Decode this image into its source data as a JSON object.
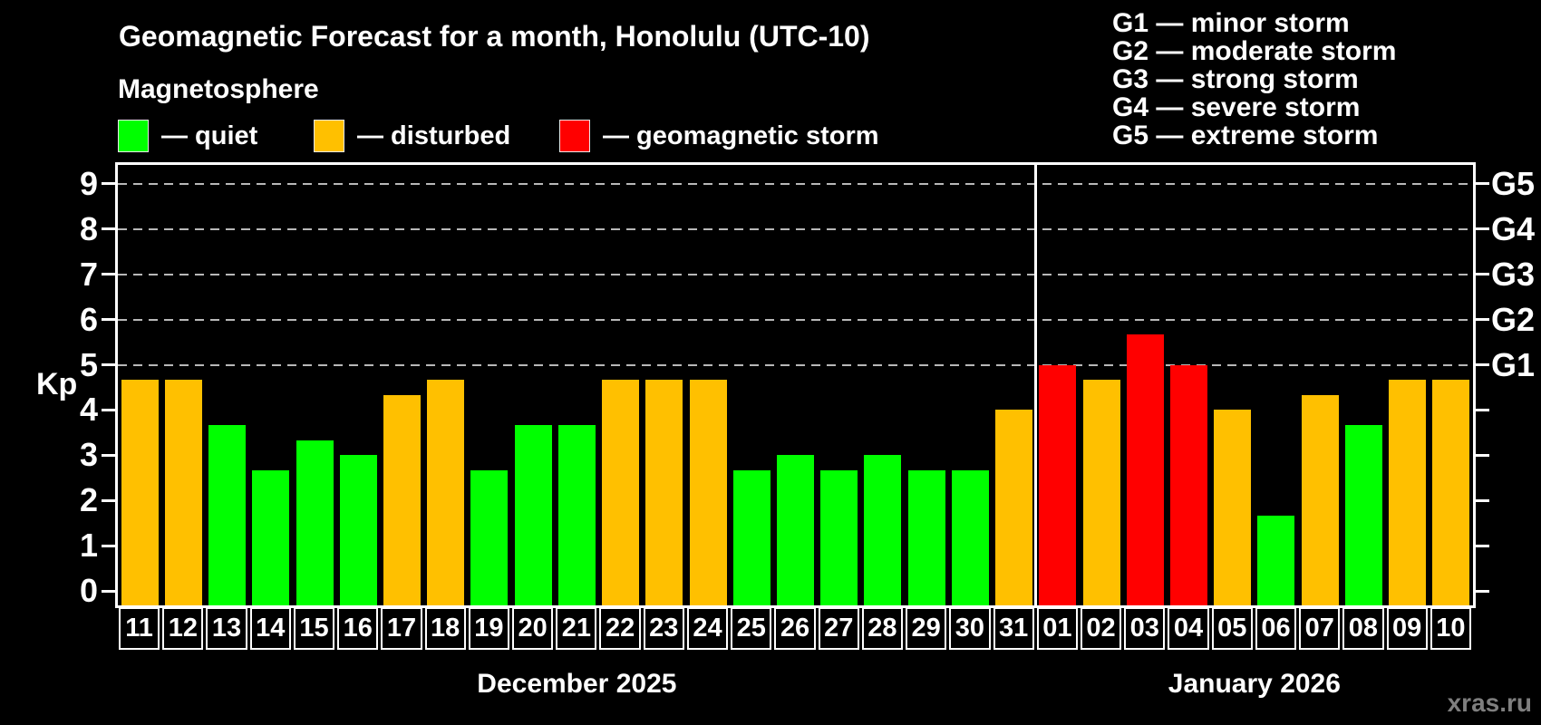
{
  "header": {
    "title": "Geomagnetic Forecast for a month, Honolulu (UTC-10)",
    "subtitle": "Magnetosphere"
  },
  "legend": {
    "items": [
      {
        "label": "— quiet",
        "status": "quiet",
        "x": 130
      },
      {
        "label": "— disturbed",
        "status": "disturbed",
        "x": 346
      },
      {
        "label": "— geomagnetic storm",
        "status": "storm",
        "x": 617
      }
    ]
  },
  "storm_scale_legend": [
    "G1 — minor storm",
    "G2 — moderate storm",
    "G3 — strong storm",
    "G4 — severe storm",
    "G5 — extreme storm"
  ],
  "colors": {
    "quiet": "#00ff00",
    "disturbed": "#ffc000",
    "storm": "#ff0000",
    "axis": "#ffffff",
    "grid": "#b8b8b8",
    "background": "#000000",
    "watermark": "#7f7f7f"
  },
  "watermark": "xras.ru",
  "chart_data": {
    "type": "bar",
    "title": "Geomagnetic Forecast for a month, Honolulu (UTC-10)",
    "xlabel": "",
    "ylabel": "Kp",
    "ylim": [
      -0.32,
      9.42
    ],
    "y_ticks": [
      0,
      1,
      2,
      3,
      4,
      5,
      6,
      7,
      8,
      9
    ],
    "grid": "horizontal dashed lines at Kp 5-9 only",
    "legend_position": "top",
    "right_axis_labels": [
      {
        "label": "G1",
        "kp": 5
      },
      {
        "label": "G2",
        "kp": 6
      },
      {
        "label": "G3",
        "kp": 7
      },
      {
        "label": "G4",
        "kp": 8
      },
      {
        "label": "G5",
        "kp": 9
      }
    ],
    "months": [
      {
        "label": "December 2025",
        "from": 0,
        "to": 20
      },
      {
        "label": "January 2026",
        "from": 21,
        "to": 30
      }
    ],
    "bars": [
      {
        "day": "11",
        "month": "December 2025",
        "value": 4.67,
        "status": "disturbed"
      },
      {
        "day": "12",
        "month": "December 2025",
        "value": 4.67,
        "status": "disturbed"
      },
      {
        "day": "13",
        "month": "December 2025",
        "value": 3.67,
        "status": "quiet"
      },
      {
        "day": "14",
        "month": "December 2025",
        "value": 2.67,
        "status": "quiet"
      },
      {
        "day": "15",
        "month": "December 2025",
        "value": 3.33,
        "status": "quiet"
      },
      {
        "day": "16",
        "month": "December 2025",
        "value": 3.0,
        "status": "quiet"
      },
      {
        "day": "17",
        "month": "December 2025",
        "value": 4.33,
        "status": "disturbed"
      },
      {
        "day": "18",
        "month": "December 2025",
        "value": 4.67,
        "status": "disturbed"
      },
      {
        "day": "19",
        "month": "December 2025",
        "value": 2.67,
        "status": "quiet"
      },
      {
        "day": "20",
        "month": "December 2025",
        "value": 3.67,
        "status": "quiet"
      },
      {
        "day": "21",
        "month": "December 2025",
        "value": 3.67,
        "status": "quiet"
      },
      {
        "day": "22",
        "month": "December 2025",
        "value": 4.67,
        "status": "disturbed"
      },
      {
        "day": "23",
        "month": "December 2025",
        "value": 4.67,
        "status": "disturbed"
      },
      {
        "day": "24",
        "month": "December 2025",
        "value": 4.67,
        "status": "disturbed"
      },
      {
        "day": "25",
        "month": "December 2025",
        "value": 2.67,
        "status": "quiet"
      },
      {
        "day": "26",
        "month": "December 2025",
        "value": 3.0,
        "status": "quiet"
      },
      {
        "day": "27",
        "month": "December 2025",
        "value": 2.67,
        "status": "quiet"
      },
      {
        "day": "28",
        "month": "December 2025",
        "value": 3.0,
        "status": "quiet"
      },
      {
        "day": "29",
        "month": "December 2025",
        "value": 2.67,
        "status": "quiet"
      },
      {
        "day": "30",
        "month": "December 2025",
        "value": 2.67,
        "status": "quiet"
      },
      {
        "day": "31",
        "month": "December 2025",
        "value": 4.0,
        "status": "disturbed"
      },
      {
        "day": "01",
        "month": "January 2026",
        "value": 5.0,
        "status": "storm"
      },
      {
        "day": "02",
        "month": "January 2026",
        "value": 4.67,
        "status": "disturbed"
      },
      {
        "day": "03",
        "month": "January 2026",
        "value": 5.67,
        "status": "storm"
      },
      {
        "day": "04",
        "month": "January 2026",
        "value": 5.0,
        "status": "storm"
      },
      {
        "day": "05",
        "month": "January 2026",
        "value": 4.0,
        "status": "disturbed"
      },
      {
        "day": "06",
        "month": "January 2026",
        "value": 1.67,
        "status": "quiet"
      },
      {
        "day": "07",
        "month": "January 2026",
        "value": 4.33,
        "status": "disturbed"
      },
      {
        "day": "08",
        "month": "January 2026",
        "value": 3.67,
        "status": "quiet"
      },
      {
        "day": "09",
        "month": "January 2026",
        "value": 4.67,
        "status": "disturbed"
      },
      {
        "day": "10",
        "month": "January 2026",
        "value": 4.67,
        "status": "disturbed"
      }
    ]
  }
}
